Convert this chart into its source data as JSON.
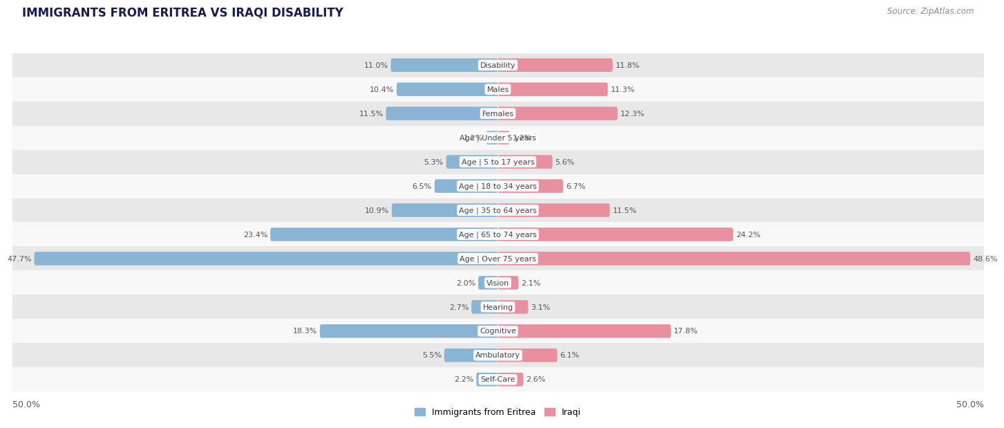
{
  "title": "IMMIGRANTS FROM ERITREA VS IRAQI DISABILITY",
  "source": "Source: ZipAtlas.com",
  "categories": [
    "Disability",
    "Males",
    "Females",
    "Age | Under 5 years",
    "Age | 5 to 17 years",
    "Age | 18 to 34 years",
    "Age | 35 to 64 years",
    "Age | 65 to 74 years",
    "Age | Over 75 years",
    "Vision",
    "Hearing",
    "Cognitive",
    "Ambulatory",
    "Self-Care"
  ],
  "eritrea_values": [
    11.0,
    10.4,
    11.5,
    1.2,
    5.3,
    6.5,
    10.9,
    23.4,
    47.7,
    2.0,
    2.7,
    18.3,
    5.5,
    2.2
  ],
  "iraqi_values": [
    11.8,
    11.3,
    12.3,
    1.2,
    5.6,
    6.7,
    11.5,
    24.2,
    48.6,
    2.1,
    3.1,
    17.8,
    6.1,
    2.6
  ],
  "eritrea_color": "#8ab4d4",
  "iraqi_color": "#e88fa0",
  "eritrea_label": "Immigrants from Eritrea",
  "iraqi_label": "Iraqi",
  "max_val": 50.0,
  "row_bg_even": "#e8e8e8",
  "row_bg_odd": "#f8f8f8",
  "title_fontsize": 12,
  "source_fontsize": 8.5,
  "bar_height": 0.52,
  "value_fontsize": 8,
  "cat_fontsize": 8
}
